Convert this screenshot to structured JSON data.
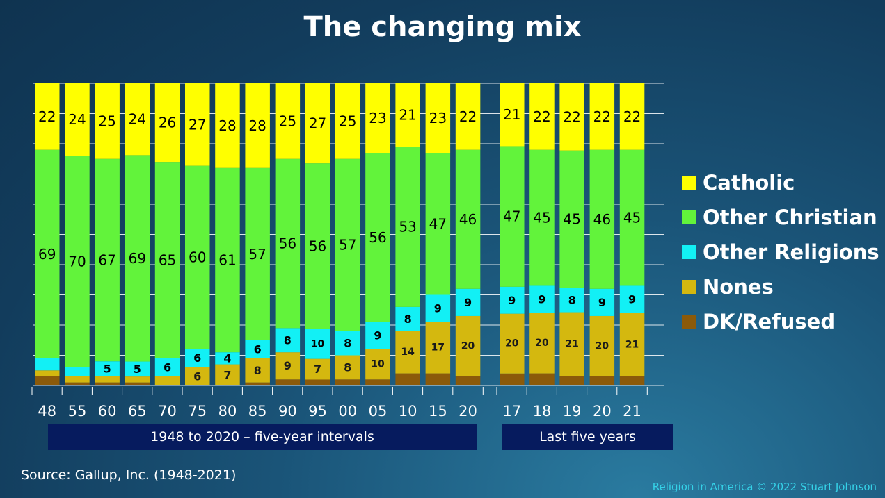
{
  "chart_data": {
    "type": "bar",
    "stacked": true,
    "normalized": true,
    "title": "The changing mix",
    "categories": [
      "48",
      "55",
      "60",
      "65",
      "70",
      "75",
      "80",
      "85",
      "90",
      "95",
      "00",
      "05",
      "10",
      "15",
      "20",
      "17",
      "18",
      "19",
      "20",
      "21"
    ],
    "series": [
      {
        "name": "DK/Refused",
        "color": "#8b5a0a",
        "values": [
          3,
          1,
          1,
          1,
          0,
          0,
          0,
          1,
          2,
          2,
          2,
          2,
          4,
          4,
          3,
          4,
          4,
          3,
          3,
          3
        ]
      },
      {
        "name": "Nones",
        "color": "#d4b80f",
        "values": [
          2,
          2,
          2,
          2,
          3,
          6,
          7,
          8,
          9,
          7,
          8,
          10,
          14,
          17,
          20,
          20,
          20,
          21,
          20,
          21
        ]
      },
      {
        "name": "Other Religions",
        "color": "#12f0f5",
        "values": [
          4,
          3,
          5,
          5,
          6,
          6,
          4,
          6,
          8,
          10,
          8,
          9,
          8,
          9,
          9,
          9,
          9,
          8,
          9,
          9
        ]
      },
      {
        "name": "Other Christian",
        "color": "#62f33b",
        "values": [
          69,
          70,
          67,
          69,
          65,
          60,
          61,
          57,
          56,
          56,
          57,
          56,
          53,
          47,
          46,
          47,
          45,
          45,
          46,
          45
        ]
      },
      {
        "name": "Catholic",
        "color": "#ffff00",
        "values": [
          22,
          24,
          25,
          24,
          26,
          27,
          28,
          28,
          25,
          27,
          25,
          23,
          21,
          23,
          22,
          21,
          22,
          22,
          22,
          22
        ]
      }
    ],
    "labels": {
      "DK/Refused": [
        null,
        null,
        null,
        null,
        null,
        null,
        null,
        null,
        null,
        null,
        null,
        null,
        null,
        null,
        null,
        null,
        null,
        null,
        null,
        null
      ],
      "Nones": [
        null,
        null,
        null,
        null,
        null,
        6,
        7,
        8,
        9,
        7,
        8,
        10,
        14,
        17,
        20,
        20,
        20,
        21,
        20,
        21
      ],
      "Other Religions": [
        null,
        null,
        5,
        5,
        6,
        6,
        4,
        6,
        8,
        10,
        8,
        9,
        8,
        9,
        9,
        9,
        9,
        8,
        9,
        9
      ],
      "Other Christian": [
        69,
        70,
        67,
        69,
        65,
        60,
        61,
        57,
        56,
        56,
        57,
        56,
        53,
        47,
        46,
        47,
        45,
        45,
        46,
        45
      ],
      "Catholic": [
        22,
        24,
        25,
        24,
        26,
        27,
        28,
        28,
        25,
        27,
        25,
        23,
        21,
        23,
        22,
        21,
        22,
        22,
        22,
        22
      ]
    },
    "ylim": [
      0,
      100
    ],
    "grid": true,
    "legend_position": "right",
    "groups": [
      {
        "label": "1948 to 2020 – five-year intervals"
      },
      {
        "label": "Last five years"
      }
    ]
  },
  "legend_order": [
    "Catholic",
    "Other Christian",
    "Other Religions",
    "Nones",
    "DK/Refused"
  ],
  "source": "Source: Gallup, Inc. (1948-2021)",
  "credit": "Religion in America © 2022 Stuart Johnson"
}
